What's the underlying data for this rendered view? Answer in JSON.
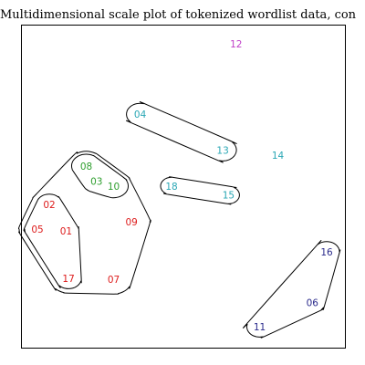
{
  "chart_data": {
    "type": "scatter",
    "title": "Multidimensional scale plot of tokenized wordlist data, con",
    "xlabel": "",
    "ylabel": "",
    "axes_shown": false,
    "grid": false,
    "legend": "none",
    "points": [
      {
        "label": "01",
        "x": 0.118,
        "y": 0.355,
        "color": "#dd1c1c"
      },
      {
        "label": "02",
        "x": 0.063,
        "y": 0.444,
        "color": "#dd1c1c"
      },
      {
        "label": "03",
        "x": 0.218,
        "y": 0.522,
        "color": "#2e9e2e"
      },
      {
        "label": "04",
        "x": 0.361,
        "y": 0.744,
        "color": "#2aa7b5"
      },
      {
        "label": "05",
        "x": 0.024,
        "y": 0.361,
        "color": "#dd1c1c"
      },
      {
        "label": "06",
        "x": 0.926,
        "y": 0.117,
        "color": "#2b2b8c"
      },
      {
        "label": "07",
        "x": 0.274,
        "y": 0.194,
        "color": "#dd1c1c"
      },
      {
        "label": "08",
        "x": 0.184,
        "y": 0.572,
        "color": "#2e9e2e"
      },
      {
        "label": "09",
        "x": 0.333,
        "y": 0.386,
        "color": "#dd1c1c"
      },
      {
        "label": "10",
        "x": 0.274,
        "y": 0.505,
        "color": "#2e9e2e"
      },
      {
        "label": "11",
        "x": 0.753,
        "y": 0.036,
        "color": "#2b2b8c"
      },
      {
        "label": "12",
        "x": 0.676,
        "y": 0.978,
        "color": "#c040c8"
      },
      {
        "label": "13",
        "x": 0.632,
        "y": 0.625,
        "color": "#2aa7b5"
      },
      {
        "label": "14",
        "x": 0.813,
        "y": 0.608,
        "color": "#2aa7b5"
      },
      {
        "label": "15",
        "x": 0.651,
        "y": 0.475,
        "color": "#2aa7b5"
      },
      {
        "label": "16",
        "x": 0.973,
        "y": 0.286,
        "color": "#2b2b8c"
      },
      {
        "label": "17",
        "x": 0.126,
        "y": 0.197,
        "color": "#dd1c1c"
      },
      {
        "label": "18",
        "x": 0.464,
        "y": 0.505,
        "color": "#2aa7b5"
      }
    ],
    "groups": [
      {
        "members": [
          "01",
          "02",
          "03",
          "05",
          "07",
          "08",
          "09",
          "10",
          "17"
        ]
      },
      {
        "members": [
          "01",
          "02",
          "05",
          "17"
        ]
      },
      {
        "members": [
          "03",
          "08",
          "10"
        ]
      },
      {
        "members": [
          "04",
          "13"
        ]
      },
      {
        "members": [
          "15",
          "18"
        ]
      },
      {
        "members": [
          "06",
          "11",
          "16"
        ]
      }
    ]
  }
}
